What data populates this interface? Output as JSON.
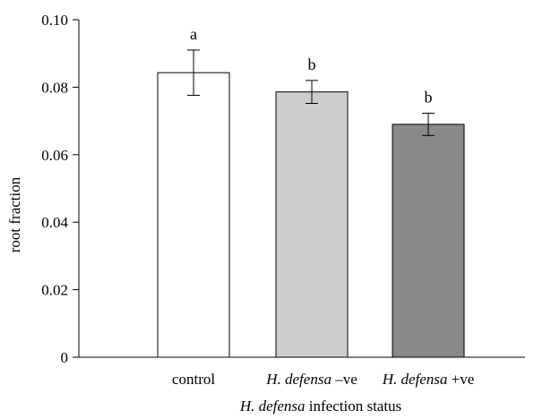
{
  "chart_data": {
    "type": "bar",
    "categories": [
      {
        "italic": "",
        "plain": "control"
      },
      {
        "italic": "H. defensa",
        "plain": " –ve"
      },
      {
        "italic": "H. defensa",
        "plain": " +ve"
      }
    ],
    "values": [
      0.0843,
      0.0786,
      0.069
    ],
    "errors": [
      0.0067,
      0.0034,
      0.0033
    ],
    "significance": [
      "a",
      "b",
      "b"
    ],
    "colors": [
      "#ffffff",
      "#cccdcf",
      "#88898b"
    ],
    "ylabel": "root fraction",
    "xlabel": {
      "italic": "H. defensa",
      "plain": " infection status"
    },
    "ylim": [
      0,
      0.1
    ],
    "yticks": [
      "0",
      "0.02",
      "0.04",
      "0.06",
      "0.08",
      "0.10"
    ],
    "grid": false,
    "legend": "none"
  }
}
